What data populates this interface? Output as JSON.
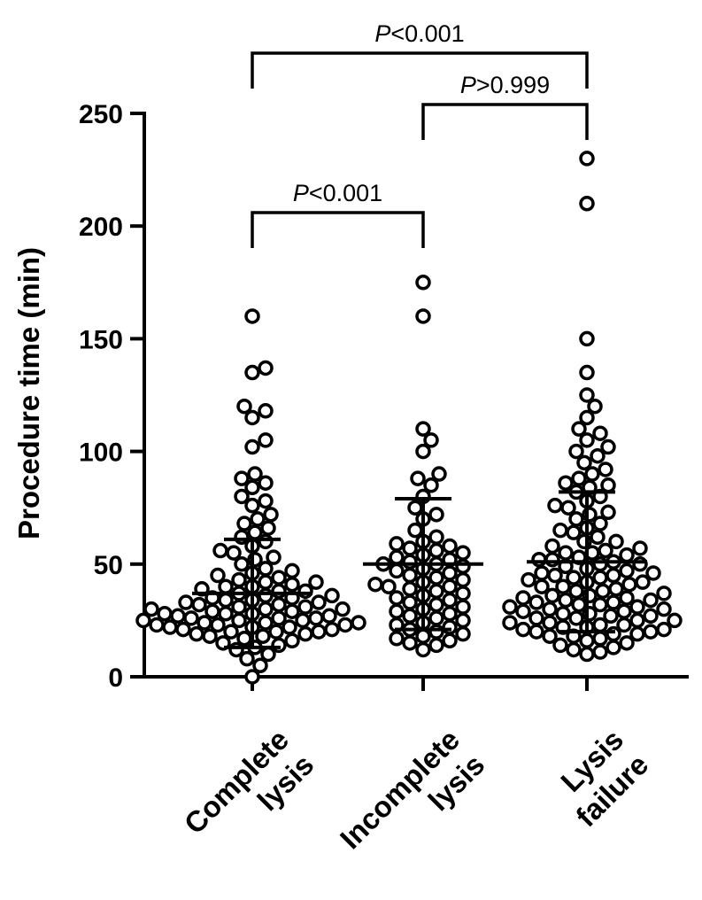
{
  "chart_data": {
    "type": "scatter",
    "ylabel": "Procedure time (min)",
    "ylim": [
      0,
      250
    ],
    "yticks": [
      "0",
      "50",
      "100",
      "150",
      "200",
      "250"
    ],
    "categories": [
      {
        "lines": [
          "Complete",
          "lysis"
        ]
      },
      {
        "lines": [
          "Incomplete",
          "lysis"
        ]
      },
      {
        "lines": [
          "Lysis",
          "failure"
        ]
      }
    ],
    "series": [
      {
        "mean": 37,
        "sd_upper": 61,
        "sd_lower": 13,
        "values": [
          160,
          137,
          135,
          120,
          118,
          115,
          105,
          102,
          90,
          88,
          86,
          84,
          80,
          78,
          76,
          72,
          70,
          68,
          66,
          64,
          62,
          60,
          58,
          56,
          55,
          53,
          52,
          50,
          48,
          47,
          46,
          45,
          44,
          43,
          42,
          42,
          41,
          40,
          40,
          39,
          38,
          38,
          37,
          36,
          36,
          35,
          35,
          34,
          34,
          33,
          33,
          32,
          32,
          31,
          31,
          30,
          30,
          30,
          29,
          29,
          28,
          28,
          28,
          27,
          27,
          26,
          26,
          26,
          25,
          25,
          25,
          24,
          24,
          24,
          23,
          23,
          23,
          22,
          22,
          22,
          21,
          21,
          20,
          20,
          20,
          19,
          19,
          18,
          18,
          17,
          16,
          15,
          14,
          13,
          12,
          10,
          8,
          5,
          0
        ]
      },
      {
        "mean": 50,
        "sd_upper": 79,
        "sd_lower": 21,
        "values": [
          175,
          160,
          110,
          105,
          100,
          90,
          88,
          85,
          80,
          75,
          72,
          70,
          65,
          62,
          60,
          59,
          58,
          57,
          56,
          55,
          54,
          53,
          52,
          51,
          50,
          50,
          49,
          48,
          47,
          46,
          45,
          44,
          43,
          42,
          41,
          40,
          40,
          39,
          38,
          37,
          36,
          35,
          34,
          33,
          32,
          31,
          30,
          29,
          28,
          27,
          26,
          25,
          24,
          23,
          22,
          21,
          20,
          19,
          18,
          17,
          16,
          15,
          14,
          12
        ]
      },
      {
        "mean": 51,
        "sd_upper": 82,
        "sd_lower": 20,
        "values": [
          230,
          210,
          150,
          135,
          125,
          120,
          115,
          110,
          108,
          105,
          102,
          100,
          98,
          95,
          92,
          90,
          88,
          86,
          85,
          84,
          82,
          80,
          78,
          76,
          75,
          73,
          72,
          70,
          68,
          66,
          65,
          64,
          62,
          60,
          60,
          58,
          57,
          56,
          55,
          55,
          54,
          53,
          52,
          52,
          51,
          50,
          50,
          49,
          48,
          47,
          46,
          46,
          45,
          45,
          44,
          44,
          43,
          42,
          42,
          41,
          40,
          40,
          39,
          38,
          38,
          37,
          36,
          36,
          35,
          35,
          34,
          34,
          33,
          33,
          32,
          32,
          31,
          31,
          30,
          30,
          29,
          29,
          28,
          28,
          27,
          27,
          26,
          26,
          25,
          25,
          24,
          24,
          23,
          23,
          22,
          22,
          21,
          21,
          20,
          20,
          19,
          19,
          18,
          18,
          17,
          16,
          15,
          14,
          13,
          12,
          11,
          10
        ]
      }
    ],
    "comparisons": [
      {
        "from": 0,
        "to": 2,
        "label_prefix": "P",
        "label_rest": "<0.001"
      },
      {
        "from": 1,
        "to": 2,
        "label_prefix": "P",
        "label_rest": ">0.999"
      },
      {
        "from": 0,
        "to": 1,
        "label_prefix": "P",
        "label_rest": "<0.001"
      }
    ]
  }
}
